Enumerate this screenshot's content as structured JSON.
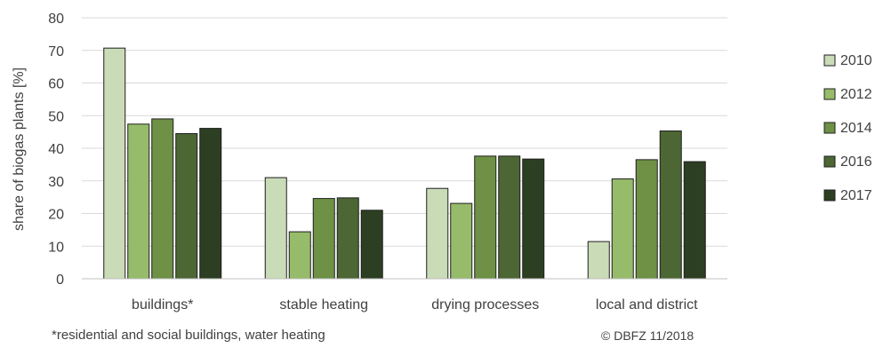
{
  "chart_data": {
    "type": "bar",
    "categories": [
      "buildings*",
      "stable heating",
      "drying processes",
      "local and district"
    ],
    "series": [
      {
        "name": "2010",
        "values": [
          70.7,
          31.0,
          27.7,
          11.4
        ],
        "color": "#c9dbb7"
      },
      {
        "name": "2012",
        "values": [
          47.4,
          14.4,
          23.1,
          30.6
        ],
        "color": "#96bb6a"
      },
      {
        "name": "2014",
        "values": [
          49.0,
          24.6,
          37.6,
          36.5
        ],
        "color": "#6e9145"
      },
      {
        "name": "2016",
        "values": [
          44.5,
          24.8,
          37.6,
          45.3
        ],
        "color": "#4c6634"
      },
      {
        "name": "2017",
        "values": [
          46.1,
          21.0,
          36.7,
          35.9
        ],
        "color": "#2c3f22"
      }
    ],
    "title": "",
    "xlabel": "",
    "ylabel": "share of biogas plants [%]",
    "ylim": [
      0,
      80
    ],
    "yticks": [
      0,
      10,
      20,
      30,
      40,
      50,
      60,
      70,
      80
    ],
    "grid": true,
    "legend": "right"
  },
  "notes": {
    "footnote": "*residential and social buildings, water heating",
    "credit": "© DBFZ 11/2018"
  }
}
